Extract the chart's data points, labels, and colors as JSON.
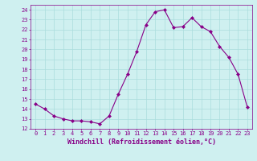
{
  "x": [
    0,
    1,
    2,
    3,
    4,
    5,
    6,
    7,
    8,
    9,
    10,
    11,
    12,
    13,
    14,
    15,
    16,
    17,
    18,
    19,
    20,
    21,
    22,
    23
  ],
  "y": [
    14.5,
    14.0,
    13.3,
    13.0,
    12.8,
    12.8,
    12.7,
    12.5,
    13.3,
    15.5,
    17.5,
    19.8,
    22.5,
    23.8,
    24.0,
    22.2,
    22.3,
    23.2,
    22.3,
    21.8,
    20.3,
    19.2,
    17.5,
    14.2
  ],
  "line_color": "#880088",
  "marker": "D",
  "marker_size": 2,
  "bg_color": "#cff0f0",
  "grid_color": "#aadddd",
  "xlabel": "Windchill (Refroidissement éolien,°C)",
  "xlabel_color": "#880088",
  "tick_color": "#880088",
  "ylim": [
    12,
    24.5
  ],
  "yticks": [
    12,
    13,
    14,
    15,
    16,
    17,
    18,
    19,
    20,
    21,
    22,
    23,
    24
  ],
  "xlim": [
    -0.5,
    23.5
  ],
  "xticks": [
    0,
    1,
    2,
    3,
    4,
    5,
    6,
    7,
    8,
    9,
    10,
    11,
    12,
    13,
    14,
    15,
    16,
    17,
    18,
    19,
    20,
    21,
    22,
    23
  ],
  "tick_fontsize": 5.0,
  "label_fontsize": 6.0
}
